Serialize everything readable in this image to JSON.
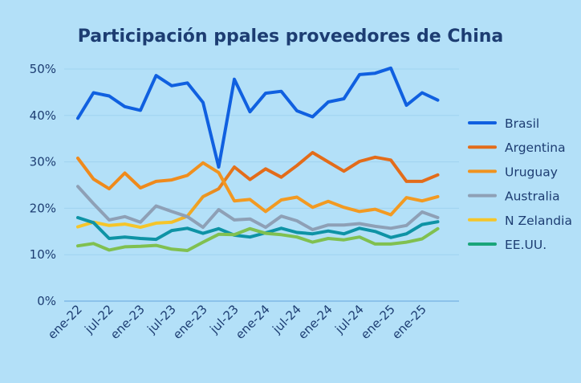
{
  "chart_data": {
    "type": "line",
    "title": "Participación ppales proveedores de China",
    "xlabel": "",
    "ylabel": "",
    "ylim": [
      0,
      50
    ],
    "yticks": [
      "0%",
      "10%",
      "20%",
      "30%",
      "40%",
      "50%"
    ],
    "ytick_values": [
      0,
      10,
      20,
      30,
      40,
      50
    ],
    "xtick_labels": [
      "ene-22",
      "jul-22",
      "ene-23",
      "jul-23",
      "ene-23",
      "jul-23",
      "ene-24",
      "jul-24",
      "ene-24",
      "jul-24",
      "ene-25",
      "ene-25"
    ],
    "xtick_every": 2,
    "grid": true,
    "legend_position": "right",
    "legend": [
      {
        "name": "Brasil",
        "color": "#1060e0"
      },
      {
        "name": "Argentina",
        "color": "#e36c1a"
      },
      {
        "name": "Uruguay",
        "color": "#f0931f"
      },
      {
        "name": "Australia",
        "color": "#8ea0b6"
      },
      {
        "name": "N Zelandia",
        "color": "#f5c52a"
      },
      {
        "name": "EE.UU.",
        "color": "#1aa57a"
      }
    ],
    "series": [
      {
        "name": "Brasil",
        "color": "#1060e0",
        "color_start": "#1060e0",
        "values": [
          39.4,
          44.9,
          44.2,
          41.9,
          41.1,
          48.6,
          46.4,
          47.0,
          42.8,
          28.9,
          47.8,
          40.8,
          44.8,
          45.2,
          41.0,
          39.7,
          42.9,
          43.6,
          48.8,
          49.1,
          50.2,
          42.2,
          44.9,
          43.3
        ]
      },
      {
        "name": "Argentina",
        "color": "#e36c1a",
        "color_start": "#f5c52a",
        "values": [
          16.0,
          17.0,
          16.3,
          16.6,
          15.9,
          16.8,
          17.0,
          18.3,
          22.5,
          24.2,
          28.9,
          26.2,
          28.5,
          26.7,
          29.2,
          32.0,
          30.0,
          28.0,
          30.1,
          31.0,
          30.4,
          25.8,
          25.8,
          27.2
        ]
      },
      {
        "name": "Uruguay",
        "color": "#f29a22",
        "color_start": "#ef8a1c",
        "values": [
          30.8,
          26.3,
          24.2,
          27.6,
          24.4,
          25.8,
          26.1,
          27.1,
          29.8,
          27.7,
          21.6,
          21.9,
          19.3,
          21.8,
          22.4,
          20.2,
          21.5,
          20.2,
          19.3,
          19.8,
          18.6,
          22.3,
          21.6,
          22.5
        ]
      },
      {
        "name": "Australia",
        "color": "#8ea0b6",
        "color_start": "#8ea0b6",
        "values": [
          24.7,
          21.0,
          17.5,
          18.2,
          17.0,
          20.5,
          19.3,
          18.2,
          15.9,
          19.7,
          17.5,
          17.7,
          15.9,
          18.3,
          17.3,
          15.4,
          16.4,
          16.4,
          16.7,
          16.1,
          15.7,
          16.3,
          19.2,
          18.0
        ]
      },
      {
        "name": "EE.UU.",
        "color": "#0e93a5",
        "color_start": "#0e93a5",
        "values": [
          18.0,
          16.9,
          13.5,
          13.8,
          13.5,
          13.3,
          15.2,
          15.7,
          14.6,
          15.6,
          14.2,
          13.8,
          14.7,
          15.7,
          14.8,
          14.5,
          15.1,
          14.5,
          15.7,
          15.0,
          13.7,
          14.5,
          16.5,
          17.1
        ]
      },
      {
        "name": "",
        "color": "#80c050",
        "color_start": "#80c050",
        "values": [
          11.9,
          12.4,
          11.0,
          11.7,
          11.8,
          12.0,
          11.2,
          10.9,
          12.7,
          14.4,
          14.3,
          15.6,
          14.6,
          14.3,
          13.8,
          12.7,
          13.5,
          13.2,
          13.8,
          12.3,
          12.3,
          12.7,
          13.4,
          15.6
        ]
      }
    ]
  }
}
